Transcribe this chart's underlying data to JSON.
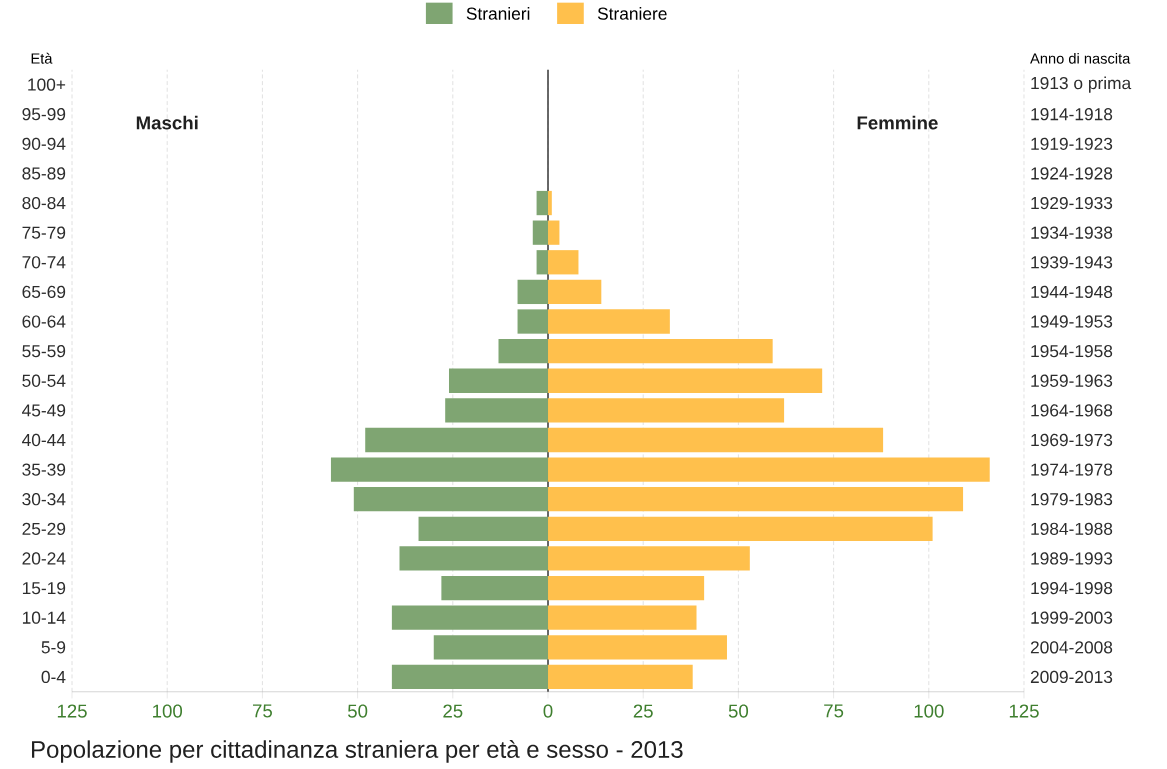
{
  "chart_data": {
    "type": "bar",
    "orientation": "horizontal",
    "title": "Popolazione per cittadinanza straniera per età e sesso - 2013",
    "ylabel": "Età",
    "y2label": "Anno di nascita",
    "categories": [
      "100+",
      "95-99",
      "90-94",
      "85-89",
      "80-84",
      "75-79",
      "70-74",
      "65-69",
      "60-64",
      "55-59",
      "50-54",
      "45-49",
      "40-44",
      "35-39",
      "30-34",
      "25-29",
      "20-24",
      "15-19",
      "10-14",
      "5-9",
      "0-4"
    ],
    "y2_categories": [
      "1913 o prima",
      "1914-1918",
      "1919-1923",
      "1924-1928",
      "1929-1933",
      "1934-1938",
      "1939-1943",
      "1944-1948",
      "1949-1953",
      "1954-1958",
      "1959-1963",
      "1964-1968",
      "1969-1973",
      "1974-1978",
      "1979-1983",
      "1984-1988",
      "1989-1993",
      "1994-1998",
      "1999-2003",
      "2004-2008",
      "2009-2013"
    ],
    "series": [
      {
        "name": "Stranieri",
        "color": "#7fa572",
        "values": [
          0,
          0,
          0,
          0,
          -3,
          -4,
          -3,
          -8,
          -8,
          -13,
          -26,
          -27,
          -48,
          -57,
          -51,
          -34,
          -39,
          -28,
          -41,
          -30,
          -41
        ]
      },
      {
        "name": "Straniere",
        "color": "#ffc04c",
        "values": [
          0,
          0,
          0,
          0,
          1,
          3,
          8,
          14,
          32,
          59,
          72,
          62,
          88,
          116,
          109,
          101,
          53,
          41,
          39,
          47,
          38
        ]
      }
    ],
    "xlim": [
      -125,
      125
    ],
    "xticks": [
      {
        "value": -125,
        "label": "125"
      },
      {
        "value": -100,
        "label": "100"
      },
      {
        "value": -75,
        "label": "75"
      },
      {
        "value": -50,
        "label": "50"
      },
      {
        "value": -25,
        "label": "25"
      },
      0,
      25,
      50,
      75,
      100,
      125
    ],
    "ref_lines": [
      {
        "axis": "x",
        "value": 0,
        "color": "#444444"
      }
    ],
    "annotations": [
      "Maschi",
      "Femmine"
    ],
    "grid": "x",
    "legend": "top",
    "stacked": true
  }
}
